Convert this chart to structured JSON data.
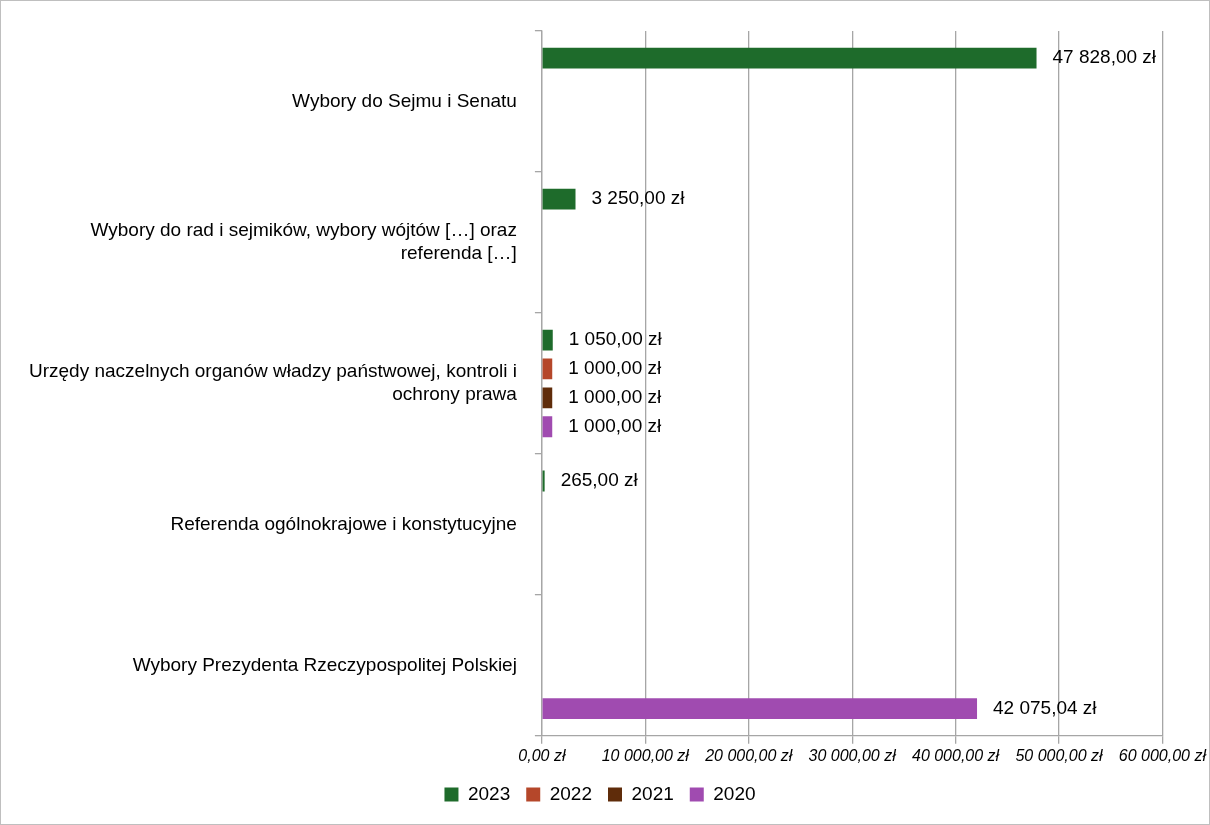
{
  "chart_data": {
    "type": "bar",
    "orientation": "horizontal",
    "categories": [
      "Wybory do Sejmu i Senatu",
      "Wybory do rad i sejmików, wybory wójtów […] oraz referenda […]",
      "Urzędy naczelnych organów władzy państwowej, kontroli i ochrony prawa",
      "Referenda ogólnokrajowe i konstytucyjne",
      "Wybory Prezydenta Rzeczypospolitej Polskiej"
    ],
    "series": [
      {
        "name": "2023",
        "color": "#1e6b2b",
        "values": [
          47828,
          3250,
          1050,
          265,
          null
        ],
        "value_labels": [
          "47 828,00 zł",
          "3 250,00 zł",
          "1 050,00 zł",
          "265,00 zł",
          null
        ]
      },
      {
        "name": "2022",
        "color": "#b5472a",
        "values": [
          null,
          null,
          1000,
          null,
          null
        ],
        "value_labels": [
          null,
          null,
          "1 000,00 zł",
          null,
          null
        ]
      },
      {
        "name": "2021",
        "color": "#5f2c0a",
        "values": [
          null,
          null,
          1000,
          null,
          null
        ],
        "value_labels": [
          null,
          null,
          "1 000,00 zł",
          null,
          null
        ]
      },
      {
        "name": "2020",
        "color": "#a04bb0",
        "values": [
          null,
          null,
          1000,
          null,
          42075.04
        ],
        "value_labels": [
          null,
          null,
          "1 000,00 zł",
          null,
          "42 075,04 zł"
        ]
      }
    ],
    "xlim": [
      0,
      60000
    ],
    "xticks": [
      {
        "value": 0,
        "label": "0,00 zł"
      },
      {
        "value": 10000,
        "label": "10 000,00 zł"
      },
      {
        "value": 20000,
        "label": "20 000,00 zł"
      },
      {
        "value": 30000,
        "label": "30 000,00 zł"
      },
      {
        "value": 40000,
        "label": "40 000,00 zł"
      },
      {
        "value": 50000,
        "label": "50 000,00 zł"
      },
      {
        "value": 60000,
        "label": "60 000,00 zł"
      }
    ],
    "grid": "x",
    "legend": "bottom"
  }
}
